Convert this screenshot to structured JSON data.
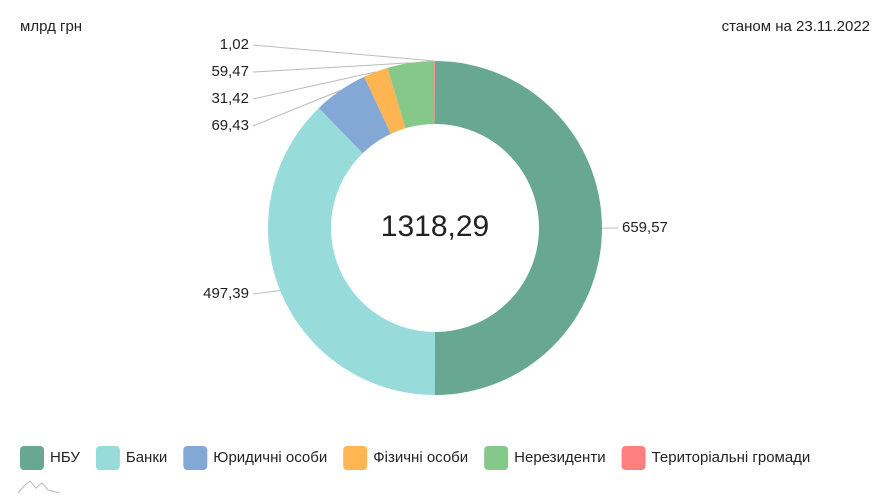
{
  "chart_data": {
    "type": "donut",
    "unit_label": "млрд грн",
    "date_label": "станом на 23.11.2022",
    "total": {
      "value": 1318.29,
      "label": "1318,29"
    },
    "categories": [
      "НБУ",
      "Банки",
      "Юридичні особи",
      "Фізичні особи",
      "Нерезиденти",
      "Територіальні громади"
    ],
    "values": [
      659.57,
      497.39,
      69.43,
      31.42,
      59.47,
      1.02
    ],
    "value_labels": [
      "659,57",
      "497,39",
      "69,43",
      "31,42",
      "59,47",
      "1,02"
    ],
    "colors": [
      "#68a893",
      "#97dcdb",
      "#84a8d6",
      "#ffb552",
      "#85c88a",
      "#ff7f7f"
    ],
    "legend": "bottom"
  }
}
